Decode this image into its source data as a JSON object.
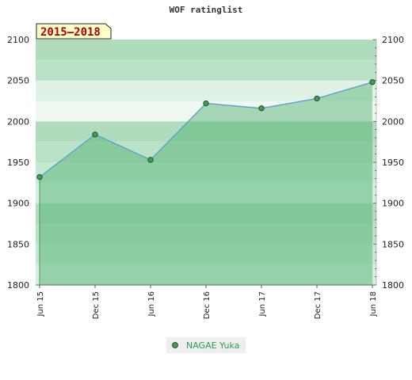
{
  "chart_data": {
    "type": "area",
    "title": "WOF ratinglist",
    "period_label": "2015–2018",
    "x_labels": [
      "Jun 15",
      "Dec 15",
      "Jun 16",
      "Dec 16",
      "Jun 17",
      "Dec 17",
      "Jun 18"
    ],
    "y_ticks": [
      1800,
      1850,
      1900,
      1950,
      2000,
      2050,
      2100
    ],
    "ylim": [
      1800,
      2100
    ],
    "series": [
      {
        "name": "NAGAE Yuka",
        "x": [
          "Jun 15",
          "Dec 15",
          "Jun 16",
          "Dec 16",
          "Jun 17",
          "Dec 17",
          "Jun 18"
        ],
        "values": [
          1932,
          1984,
          1953,
          2022,
          2016,
          2028,
          2048
        ]
      }
    ],
    "grid": true,
    "legend_position": "bottom-center",
    "colors": {
      "line": "#5a9ad6",
      "marker": "#3f9e54",
      "area_fill": "#4caf6a",
      "band_a": "#7fc897",
      "band_b": "#b3e0c1",
      "badge_bg": "#ffffcc",
      "badge_text": "#b00000"
    }
  }
}
